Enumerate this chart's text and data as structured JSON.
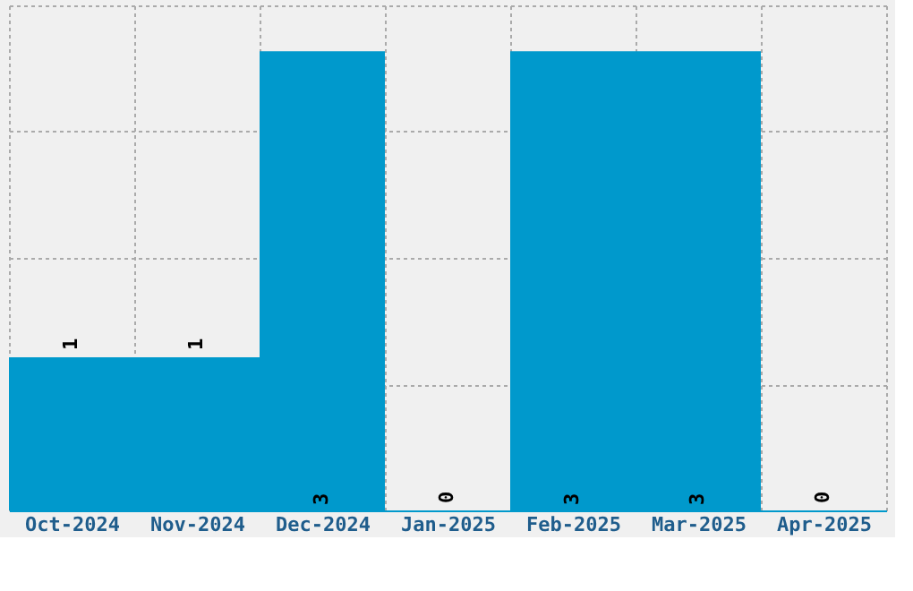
{
  "chart_data": {
    "type": "bar",
    "categories": [
      "Oct-2024",
      "Nov-2024",
      "Dec-2024",
      "Jan-2025",
      "Feb-2025",
      "Mar-2025",
      "Apr-2025"
    ],
    "values": [
      1,
      1,
      3,
      0,
      3,
      3,
      0
    ],
    "color": "#0099cc",
    "data_labels": true,
    "ylim": [
      0,
      3.3
    ],
    "yticks": [
      {
        "value": 0,
        "label": null
      },
      {
        "value": 0.825,
        "label": null
      },
      {
        "value": 1.65,
        "label": null
      },
      {
        "value": 2.475,
        "label": null
      },
      {
        "value": 3.3,
        "label": null
      }
    ],
    "grid": true,
    "tick_labels": "x"
  }
}
